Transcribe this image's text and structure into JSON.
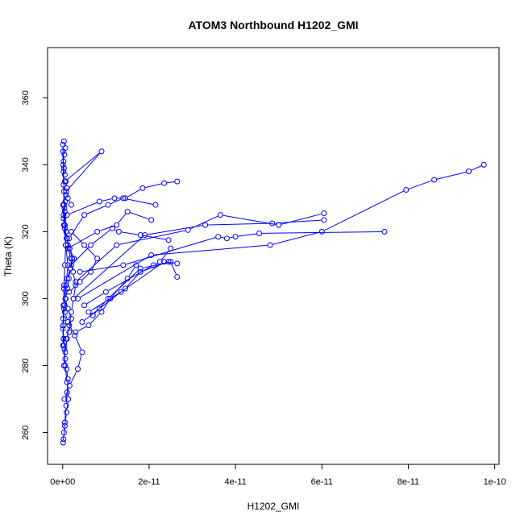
{
  "chart_data": {
    "type": "scatter",
    "title": "ATOM3 Northbound H1202_GMI",
    "xlabel": "H1202_GMI",
    "ylabel": "Theta (K)",
    "xlim": [
      -3.5e-12,
      1.01e-10
    ],
    "ylim": [
      250.5,
      375
    ],
    "x_ticks": [
      0,
      2e-11,
      4e-11,
      6e-11,
      8e-11,
      1e-10
    ],
    "x_tick_labels": [
      "0e+00",
      "2e-11",
      "4e-11",
      "6e-11",
      "8e-11",
      "1e-10"
    ],
    "y_ticks": [
      260,
      280,
      300,
      320,
      340,
      360
    ],
    "y_tick_labels": [
      "260",
      "280",
      "300",
      "320",
      "340",
      "360"
    ],
    "grid": false,
    "series_style": {
      "color": "#0000ff",
      "marker": "open-circle",
      "connected": true
    },
    "series": [
      {
        "x": [
          1e-13,
          3e-13,
          5e-13,
          8e-13,
          1e-12,
          1.2e-12,
          9e-13,
          6e-13,
          4e-13,
          2e-13,
          5e-14,
          1e-13,
          3e-13,
          7e-13,
          1.1e-12,
          1.4e-12,
          1.8e-12,
          2.2e-12,
          1.6e-12,
          1e-12,
          5e-13,
          2e-13
        ],
        "y": [
          257,
          260,
          263,
          268,
          272,
          276,
          279,
          282,
          285,
          288,
          291,
          294,
          297,
          300,
          303,
          306,
          309,
          312,
          315,
          318,
          321,
          324
        ]
      },
      {
        "x": [
          2e-13,
          5e-13,
          9e-13,
          1.3e-12,
          1e-12,
          6e-13,
          3e-13,
          1e-13,
          4e-13,
          8e-13,
          1.2e-12,
          7e-13,
          3e-13,
          1e-13
        ],
        "y": [
          258,
          262,
          266,
          270,
          275,
          280,
          286,
          292,
          298,
          304,
          310,
          316,
          322,
          328
        ]
      },
      {
        "x": [
          3e-13,
          6e-13,
          1e-12,
          1.5e-12,
          2e-12,
          2.5e-12,
          3e-12,
          2.4e-12,
          1.8e-12,
          1.2e-12,
          8e-13,
          5e-13,
          3e-13,
          2e-13,
          1e-13
        ],
        "y": [
          280,
          284,
          288,
          292,
          296,
          300,
          304,
          308,
          312,
          316,
          320,
          326,
          332,
          338,
          344
        ]
      },
      {
        "x": [
          5e-14,
          1e-13,
          2e-13,
          3e-13,
          5e-13,
          7e-13,
          5e-13,
          3e-13,
          2e-13,
          1e-13,
          5e-14
        ],
        "y": [
          286,
          292,
          298,
          304,
          310,
          316,
          322,
          328,
          334,
          340,
          346
        ]
      },
      {
        "x": [
          8e-13,
          1.5e-12,
          2e-12,
          1.2e-12,
          6e-13,
          3e-13,
          1e-12,
          1.8e-12,
          2.6e-12,
          1.6e-12,
          9e-13
        ],
        "y": [
          288,
          290,
          294,
          297,
          300,
          303,
          306,
          309,
          312,
          315,
          318
        ]
      },
      {
        "x": [
          2e-13,
          4e-13,
          6e-13,
          8e-13,
          1e-12,
          7e-13,
          5e-13,
          3e-13,
          2e-13,
          4e-13,
          6e-13,
          3e-13
        ],
        "y": [
          325,
          327,
          329,
          331,
          333,
          335,
          337,
          339,
          341,
          343,
          345,
          347
        ]
      },
      {
        "x": [
          5e-13,
          9e-12,
          8e-13,
          1.2e-12,
          2e-12
        ],
        "y": [
          335,
          344,
          332,
          330,
          328
        ]
      },
      {
        "x": [
          1e-12,
          8.5e-12,
          1.2e-11,
          1.45e-11,
          1.85e-11,
          2.35e-11,
          2.65e-11
        ],
        "y": [
          325,
          329,
          330,
          330,
          333,
          334.5,
          335
        ]
      },
      {
        "x": [
          1.5e-12,
          5e-12,
          1.05e-11,
          1.4e-11,
          2.15e-11
        ],
        "y": [
          318,
          325,
          328,
          330,
          328
        ]
      },
      {
        "x": [
          1.2e-12,
          8e-12,
          1.25e-11,
          1.5e-11,
          2.05e-11
        ],
        "y": [
          315,
          320,
          322,
          326,
          323.5
        ]
      },
      {
        "x": [
          2e-12,
          6.5e-12,
          1.15e-11,
          1.3e-11,
          1.8e-11,
          2.45e-11
        ],
        "y": [
          310,
          316,
          321,
          320,
          319,
          317.5
        ]
      },
      {
        "x": [
          3e-12,
          1.25e-11,
          2.9e-11,
          3.65e-11,
          5e-11,
          6.05e-11
        ],
        "y": [
          305,
          316,
          320.5,
          325,
          322,
          325.5
        ]
      },
      {
        "x": [
          2.5e-12,
          1.9e-11,
          3.3e-11,
          4.85e-11,
          6.05e-11
        ],
        "y": [
          300,
          319,
          322,
          322.5,
          323.5
        ]
      },
      {
        "x": [
          4e-12,
          1.4e-11,
          3.6e-11,
          3.8e-11,
          4e-11,
          4.55e-11,
          7.45e-11
        ],
        "y": [
          308,
          310,
          318.5,
          318,
          318.5,
          319.5,
          320
        ]
      },
      {
        "x": [
          3.5e-12,
          2.05e-11,
          4.8e-11,
          6e-11,
          7.95e-11,
          8.6e-11,
          9.4e-11,
          9.75e-11
        ],
        "y": [
          300,
          313,
          316,
          320,
          332.5,
          335.5,
          338,
          340
        ]
      },
      {
        "x": [
          5e-12,
          1e-11,
          2.1e-11,
          2.25e-11,
          2.5e-11
        ],
        "y": [
          298,
          302,
          310,
          311,
          315
        ]
      },
      {
        "x": [
          6e-12,
          1.35e-11,
          2.35e-11,
          2.65e-11
        ],
        "y": [
          296,
          302,
          311,
          310.5
        ]
      },
      {
        "x": [
          7e-12,
          1.05e-11,
          1.8e-11,
          2.5e-11,
          2.65e-11
        ],
        "y": [
          295,
          300,
          309,
          311,
          306.5
        ]
      },
      {
        "x": [
          4.5e-12,
          8.5e-12,
          1.45e-11,
          1.8e-11,
          2.45e-11
        ],
        "y": [
          293,
          297,
          303,
          308,
          311
        ]
      },
      {
        "x": [
          3e-12,
          6e-12,
          9e-12,
          1.1e-11,
          1.5e-11,
          1.7e-11
        ],
        "y": [
          290,
          292,
          296,
          300,
          306,
          310
        ]
      },
      {
        "x": [
          1.5e-12,
          4e-12,
          6.5e-12,
          8e-12,
          5e-12,
          2e-12
        ],
        "y": [
          302,
          305,
          308,
          312,
          316,
          320
        ]
      },
      {
        "x": [
          4e-13,
          1.6e-12,
          3.5e-12,
          4.5e-12,
          2.8e-12,
          1.2e-12,
          5e-13
        ],
        "y": [
          270,
          274,
          279,
          284,
          289,
          293,
          296
        ]
      }
    ]
  }
}
